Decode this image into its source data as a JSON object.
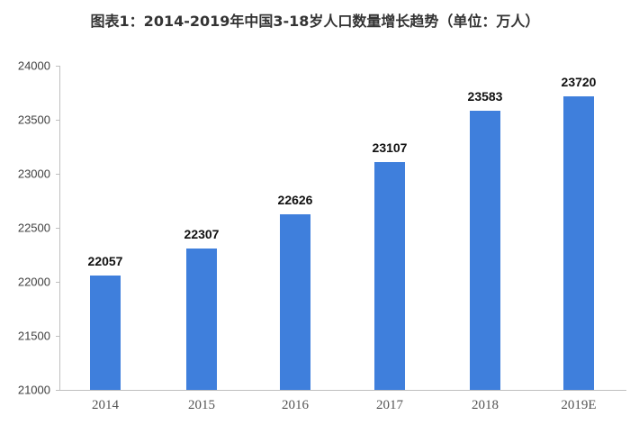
{
  "chart_data": {
    "type": "bar",
    "title": "图表1：2014-2019年中国3-18岁人口数量增长趋势（单位：万人）",
    "categories": [
      "2014",
      "2015",
      "2016",
      "2017",
      "2018",
      "2019E"
    ],
    "values": [
      22057,
      22307,
      22626,
      23107,
      23583,
      23720
    ],
    "xlabel": "",
    "ylabel": "",
    "unit": "万人",
    "ylim": [
      21000,
      24000
    ],
    "yticks": [
      "24000",
      "23500",
      "23000",
      "22500",
      "22000",
      "21500",
      "21000"
    ],
    "grid": false,
    "legend": null,
    "bar_color": "#3f7fdc"
  },
  "labels": {
    "values": [
      "22057",
      "22307",
      "22626",
      "23107",
      "23583",
      "23720"
    ]
  }
}
